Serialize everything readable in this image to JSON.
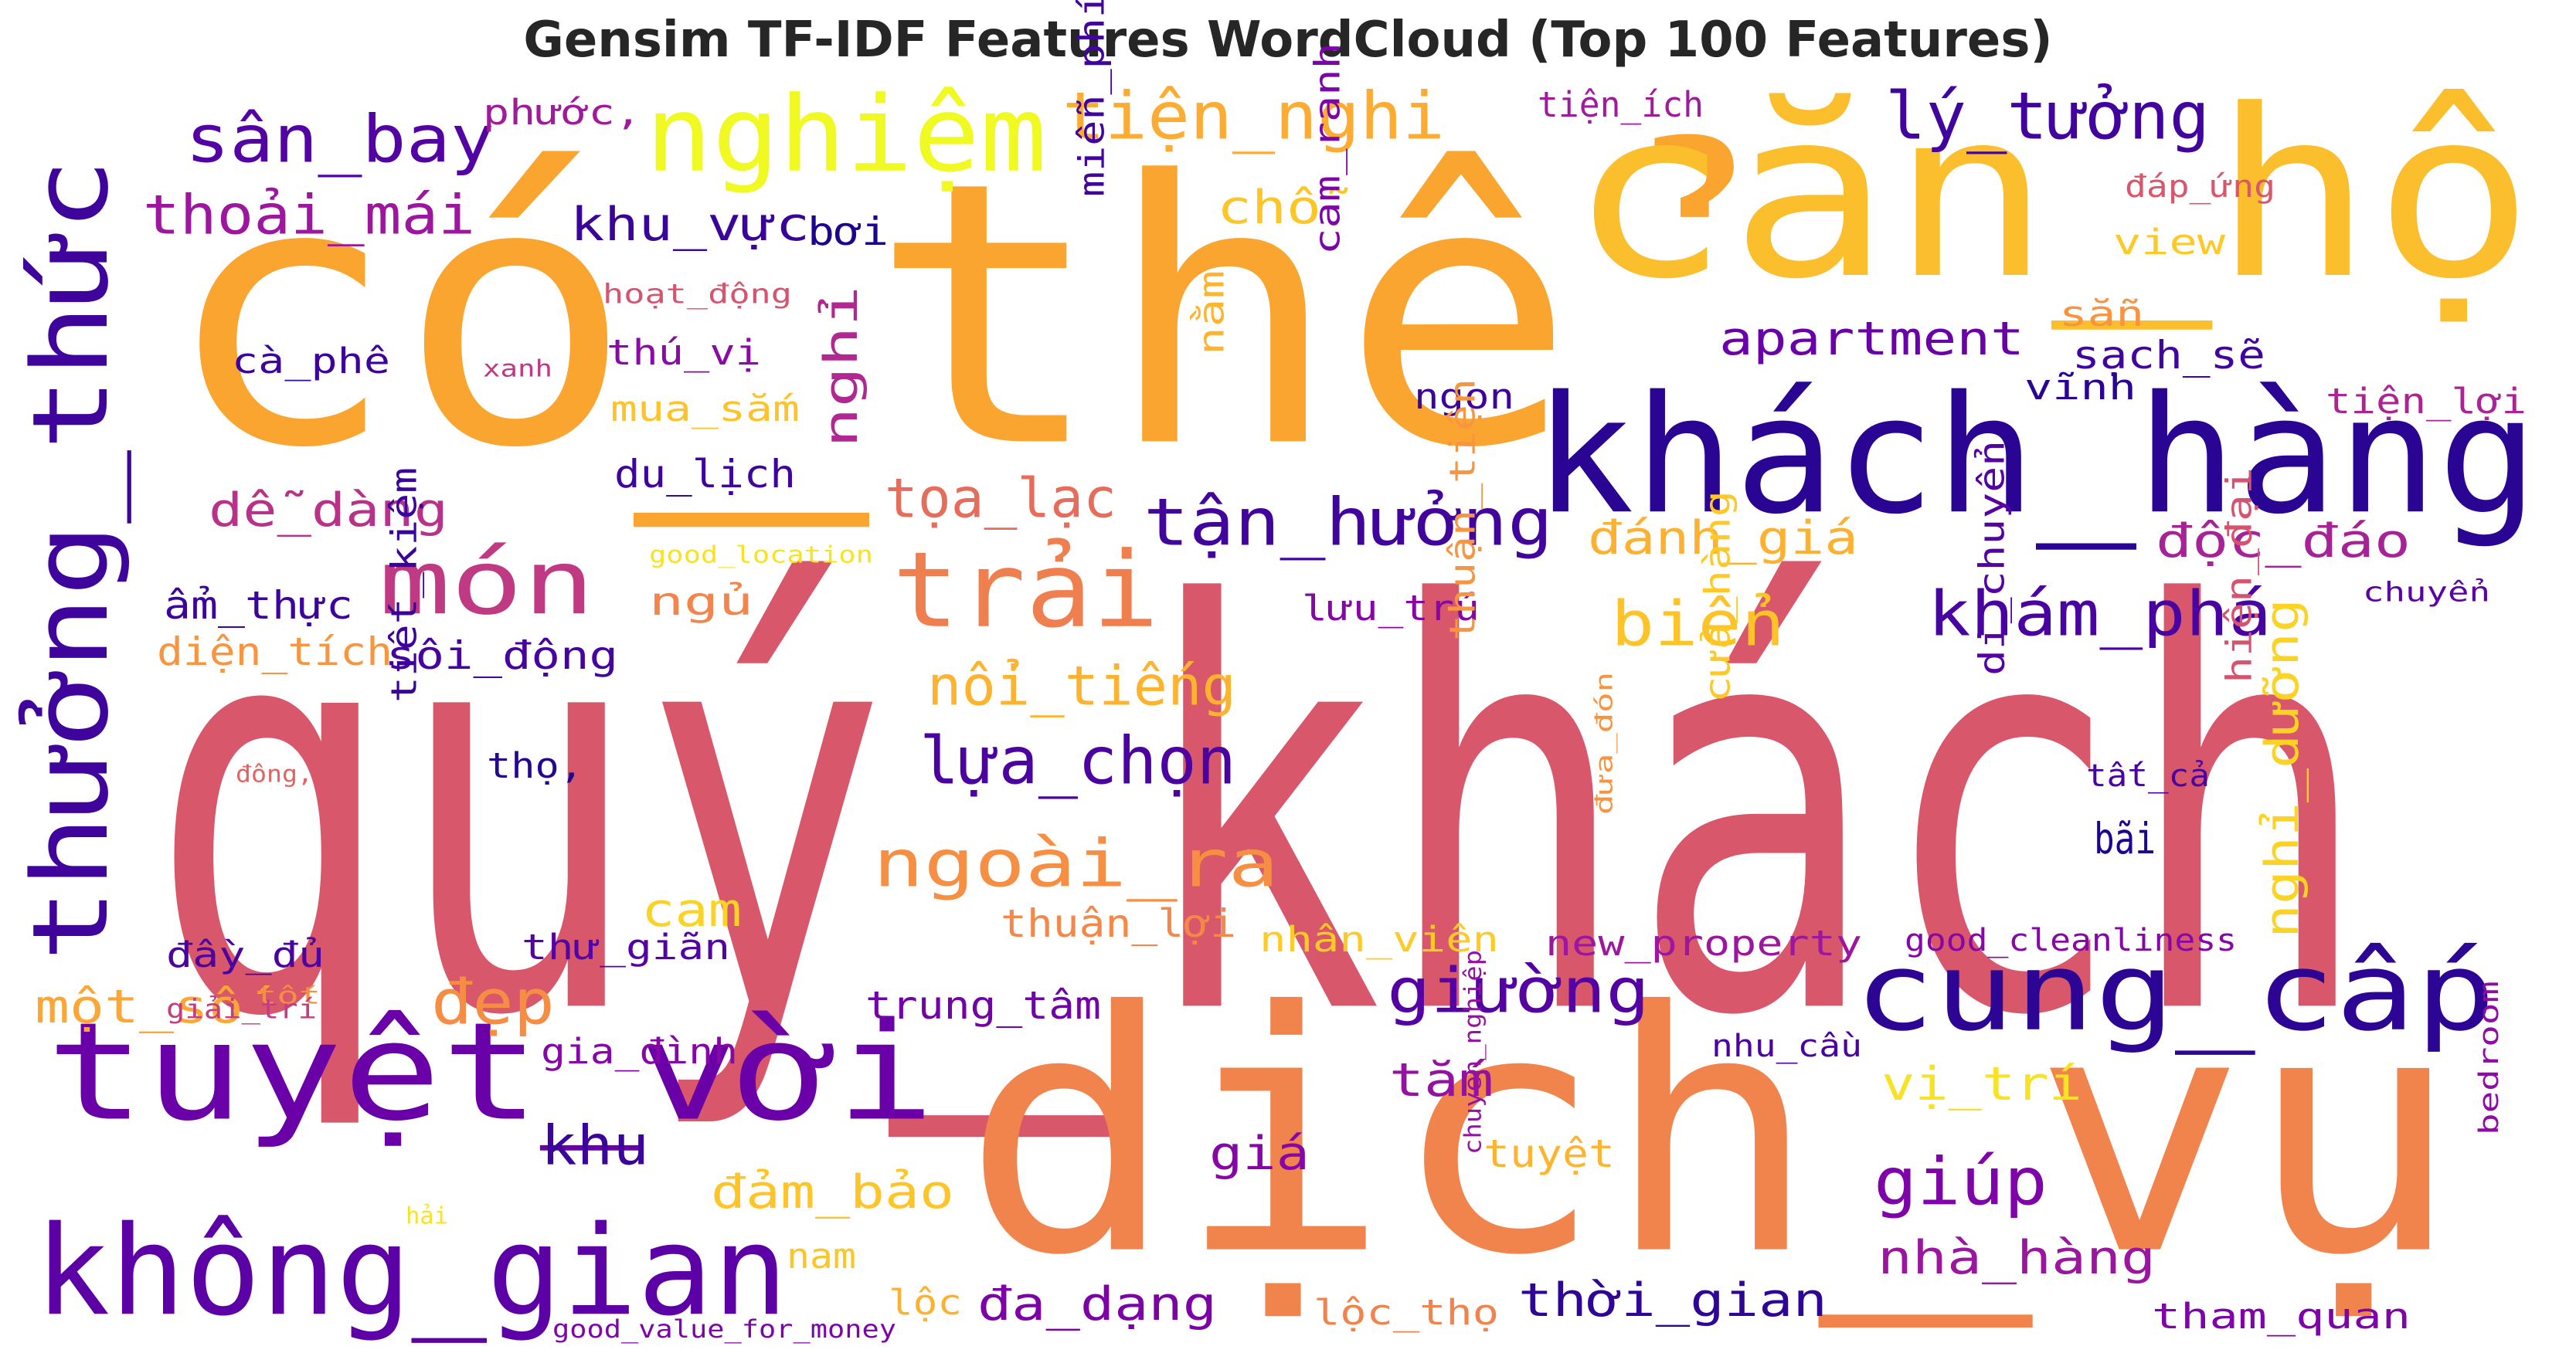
{
  "chart_data": {
    "type": "wordcloud",
    "title": "Gensim TF-IDF Features WordCloud (Top 100 Features)",
    "colormap": "plasma",
    "background": "#ffffff",
    "words": [
      {
        "text": "quý_khách",
        "color": "#d8576b"
      },
      {
        "text": "có_thể",
        "color": "#f9a530"
      },
      {
        "text": "dịch_vụ",
        "color": "#f0844c"
      },
      {
        "text": "căn_hộ",
        "color": "#fbbe2c"
      },
      {
        "text": "khách_hàng",
        "color": "#2a0593"
      },
      {
        "text": "thưởng_thức",
        "color": "#3e049c"
      },
      {
        "text": "tuyệt_vời",
        "color": "#6a00a8"
      },
      {
        "text": "không_gian",
        "color": "#5c01a6"
      },
      {
        "text": "trải",
        "color": "#f07f4f"
      },
      {
        "text": "nghiệm",
        "color": "#f0f921"
      },
      {
        "text": "cung_cấp",
        "color": "#2c0594"
      },
      {
        "text": "món",
        "color": "#c03a83"
      },
      {
        "text": "tiện_nghi",
        "color": "#fdac33"
      },
      {
        "text": "sân_bay",
        "color": "#5302a3"
      },
      {
        "text": "lý_tưởng",
        "color": "#42049e"
      },
      {
        "text": "khám_phá",
        "color": "#4903a0"
      },
      {
        "text": "tận_hưởng",
        "color": "#41049d"
      },
      {
        "text": "lựa_chọn",
        "color": "#4c02a1"
      },
      {
        "text": "ngoài_ra",
        "color": "#f68f44"
      },
      {
        "text": "giường",
        "color": "#5402a3"
      },
      {
        "text": "thoải_mái",
        "color": "#9c179e"
      },
      {
        "text": "độc_đáo",
        "color": "#a72197"
      },
      {
        "text": "giúp",
        "color": "#7e03a8"
      },
      {
        "text": "biển",
        "color": "#fdc328"
      },
      {
        "text": "nổi_tiếng",
        "color": "#fdb32f"
      },
      {
        "text": "đánh_giá",
        "color": "#fdb130"
      },
      {
        "text": "tọa_lạc",
        "color": "#e66c5c"
      },
      {
        "text": "apartment",
        "color": "#6a00a8"
      },
      {
        "text": "nghỉ",
        "color": "#b02991"
      },
      {
        "text": "nghỉ_dưỡng",
        "color": "#fbd324"
      },
      {
        "text": "khu_vực",
        "color": "#3a049a"
      },
      {
        "text": "dễ_dàng",
        "color": "#b83289"
      },
      {
        "text": "nhà_hàng",
        "color": "#9a169f"
      },
      {
        "text": "thời_gian",
        "color": "#2e0595"
      },
      {
        "text": "đa_dạng",
        "color": "#7c02a8"
      },
      {
        "text": "đẹp",
        "color": "#f68d45"
      },
      {
        "text": "khu",
        "color": "#3b049a"
      },
      {
        "text": "đảm_bảo",
        "color": "#fdc527"
      },
      {
        "text": "chỗ",
        "color": "#fdc627"
      },
      {
        "text": "trung_tâm",
        "color": "#7201a8"
      },
      {
        "text": "một_số",
        "color": "#fca636"
      },
      {
        "text": "tắm",
        "color": "#9511a1"
      },
      {
        "text": "giá",
        "color": "#8707a6"
      },
      {
        "text": "vị_trí",
        "color": "#f7e225"
      },
      {
        "text": "tuyệt",
        "color": "#fdb42f"
      },
      {
        "text": "ẩm_thực",
        "color": "#3d049b"
      },
      {
        "text": "sôi_động",
        "color": "#4603a0"
      },
      {
        "text": "diện_tích",
        "color": "#f89540"
      },
      {
        "text": "ngủ",
        "color": "#f3844c"
      },
      {
        "text": "sạch_sẽ",
        "color": "#42049e"
      },
      {
        "text": "tiện_lợi",
        "color": "#ab2494"
      },
      {
        "text": "view",
        "color": "#fdc926"
      },
      {
        "text": "sẵn",
        "color": "#f89441"
      },
      {
        "text": "vĩnh",
        "color": "#2a0593"
      },
      {
        "text": "tiện_ích",
        "color": "#a01a9c"
      },
      {
        "text": "đáp_ứng",
        "color": "#d8576b"
      },
      {
        "text": "phước,",
        "color": "#a01a9c"
      },
      {
        "text": "bơi",
        "color": "#1b068d"
      },
      {
        "text": "hoạt_động",
        "color": "#d5546e"
      },
      {
        "text": "cà_phê",
        "color": "#3c049b"
      },
      {
        "text": "xanh",
        "color": "#bf3984"
      },
      {
        "text": "thú_vị",
        "color": "#8b0aa5"
      },
      {
        "text": "mua_sắm",
        "color": "#fdc328"
      },
      {
        "text": "du_lịch",
        "color": "#3e049c"
      },
      {
        "text": "good_location",
        "color": "#f9e221"
      },
      {
        "text": "miễn_phí",
        "color": "#41049d"
      },
      {
        "text": "nằm",
        "color": "#fdb42f"
      },
      {
        "text": "cam_ranh",
        "color": "#7e03a8"
      },
      {
        "text": "ngon",
        "color": "#3c049b"
      },
      {
        "text": "lưu_trú",
        "color": "#8606a6"
      },
      {
        "text": "chuyển",
        "color": "#5b01a5"
      },
      {
        "text": "thuận_tiện",
        "color": "#f89540"
      },
      {
        "text": "di_chuyển",
        "color": "#5402a3"
      },
      {
        "text": "cửa_hàng",
        "color": "#fdc926"
      },
      {
        "text": "hiện_đại",
        "color": "#d5536f"
      },
      {
        "text": "tất_cả",
        "color": "#4a02a0"
      },
      {
        "text": "bãi",
        "color": "#1b068d"
      },
      {
        "text": "tiết_kiệm",
        "color": "#3a049a"
      },
      {
        "text": "đông,",
        "color": "#e16462"
      },
      {
        "text": "thọ,",
        "color": "#240691"
      },
      {
        "text": "đưa_đón",
        "color": "#f89441"
      },
      {
        "text": "cam",
        "color": "#fbd324"
      },
      {
        "text": "thuận_lợi",
        "color": "#f48849"
      },
      {
        "text": "nhân_viên",
        "color": "#fdca26"
      },
      {
        "text": "new_property",
        "color": "#9c179e"
      },
      {
        "text": "good_cleanliness",
        "color": "#8606a6"
      },
      {
        "text": "đầy_đủ",
        "color": "#4c02a1"
      },
      {
        "text": "tốt",
        "color": "#f68d45"
      },
      {
        "text": "thư_giãn",
        "color": "#5402a3"
      },
      {
        "text": "giải_trí",
        "color": "#c33d80"
      },
      {
        "text": "gia_đình",
        "color": "#8507a6"
      },
      {
        "text": "nhu_cầu",
        "color": "#4c02a1"
      },
      {
        "text": "chuyên_nghiệp",
        "color": "#9512a1"
      },
      {
        "text": "hải",
        "color": "#f7e225"
      },
      {
        "text": "nam",
        "color": "#fdc627"
      },
      {
        "text": "lộc",
        "color": "#fdb130"
      },
      {
        "text": "good_value_for_money",
        "color": "#7e03a8"
      },
      {
        "text": "lộc_thọ",
        "color": "#f0844c"
      },
      {
        "text": "tham_quan",
        "color": "#7e03a8"
      },
      {
        "text": "bedroom",
        "color": "#8e0ca4"
      }
    ]
  }
}
